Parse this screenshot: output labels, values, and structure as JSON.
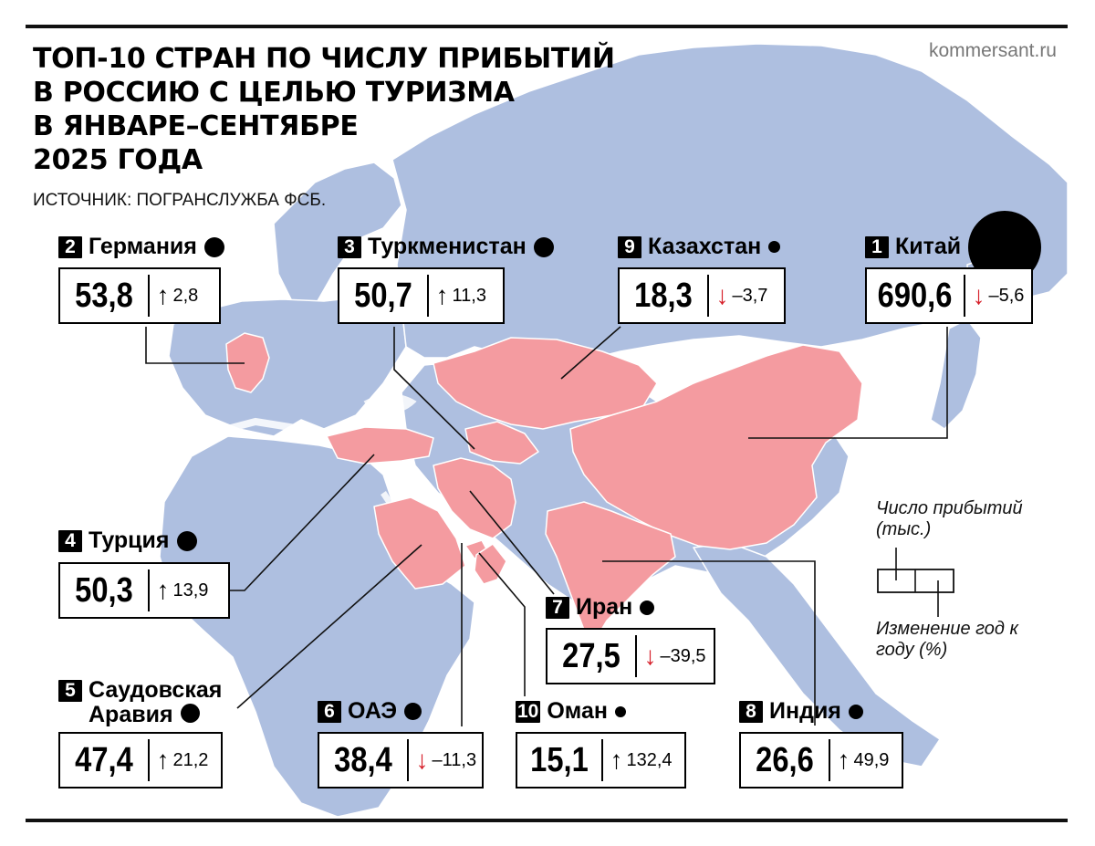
{
  "header": {
    "title_lines": [
      "ТОП-10 СТРАН ПО ЧИСЛУ ПРИБЫТИЙ",
      "В РОССИЮ С ЦЕЛЬЮ ТУРИЗМА",
      "В ЯНВАРЕ–СЕНТЯБРЕ",
      "2025 ГОДА"
    ],
    "source": "ИСТОЧНИК: ПОГРАНСЛУЖБА ФСБ.",
    "site": "kommersant.ru"
  },
  "colors": {
    "land": "#aebfe0",
    "highlight": "#f49ba0",
    "up_arrow": "#000000",
    "down_arrow": "#d6202a"
  },
  "countries": [
    {
      "rank": "2",
      "name": "Германия",
      "arrivals": "53,8",
      "arrow": "up",
      "change": "2,8"
    },
    {
      "rank": "3",
      "name": "Туркменистан",
      "arrivals": "50,7",
      "arrow": "up",
      "change": "11,3"
    },
    {
      "rank": "9",
      "name": "Казахстан",
      "arrivals": "18,3",
      "arrow": "down",
      "change": "–3,7"
    },
    {
      "rank": "1",
      "name": "Китай",
      "arrivals": "690,6",
      "arrow": "down",
      "change": "–5,6"
    },
    {
      "rank": "4",
      "name": "Турция",
      "arrivals": "50,3",
      "arrow": "up",
      "change": "13,9"
    },
    {
      "rank": "7",
      "name": "Иран",
      "arrivals": "27,5",
      "arrow": "down",
      "change": "–39,5"
    },
    {
      "rank": "5",
      "name": "Саудовская Аравия",
      "arrivals": "47,4",
      "arrow": "up",
      "change": "21,2"
    },
    {
      "rank": "6",
      "name": "ОАЭ",
      "arrivals": "38,4",
      "arrow": "down",
      "change": "–11,3"
    },
    {
      "rank": "10",
      "name": "Оман",
      "arrivals": "15,1",
      "arrow": "up",
      "change": "132,4"
    },
    {
      "rank": "8",
      "name": "Индия",
      "arrivals": "26,6",
      "arrow": "up",
      "change": "49,9"
    }
  ],
  "legend": {
    "arrivals_label": "Число прибытий (тыс.)",
    "change_label": "Изменение год к году (%)"
  }
}
